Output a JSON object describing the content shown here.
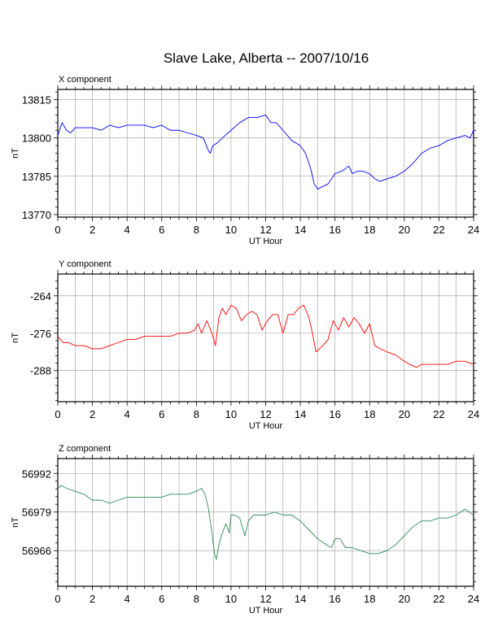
{
  "title": "Slave Lake, Alberta -- 2007/10/16",
  "chart_data": [
    {
      "type": "line",
      "panel_label": "X component",
      "xlabel": "UT Hour",
      "ylabel": "nT",
      "xlim": [
        0,
        24
      ],
      "ylim": [
        13769,
        13819
      ],
      "x_ticks": [
        0,
        2,
        4,
        6,
        8,
        10,
        12,
        14,
        16,
        18,
        20,
        22,
        24
      ],
      "y_ticks": [
        13770,
        13785,
        13800,
        13815
      ],
      "grid": true,
      "color": "#0000ff",
      "x": [
        0,
        0.25,
        0.5,
        0.75,
        1,
        1.5,
        2,
        2.5,
        3,
        3.5,
        4,
        4.5,
        5,
        5.5,
        6,
        6.5,
        7,
        7.5,
        8,
        8.4,
        8.7,
        8.8,
        8.95,
        9.2,
        9.5,
        10,
        10.5,
        11,
        11.5,
        12,
        12.3,
        12.6,
        13,
        13.5,
        14,
        14.3,
        14.6,
        14.8,
        15,
        15.3,
        15.6,
        16,
        16.4,
        16.8,
        17,
        17.3,
        17.6,
        18,
        18.3,
        18.6,
        19,
        19.5,
        20,
        20.5,
        21,
        21.5,
        22,
        22.5,
        23,
        23.5,
        23.8,
        24
      ],
      "y": [
        13801,
        13806,
        13803,
        13802,
        13804,
        13804,
        13804,
        13803,
        13805,
        13804,
        13805,
        13805,
        13805,
        13804,
        13805,
        13803,
        13803,
        13802,
        13801,
        13800,
        13795,
        13794,
        13797,
        13798,
        13800,
        13803,
        13806,
        13808,
        13808,
        13809,
        13806,
        13806,
        13803,
        13799,
        13797,
        13794,
        13788,
        13782,
        13780,
        13781,
        13782,
        13786,
        13787,
        13789,
        13786,
        13787,
        13787,
        13786,
        13784,
        13783,
        13784,
        13785,
        13787,
        13790,
        13794,
        13796,
        13797,
        13799,
        13800,
        13801,
        13800,
        13803
      ]
    },
    {
      "type": "line",
      "panel_label": "Y component",
      "xlabel": "UT Hour",
      "ylabel": "nT",
      "xlim": [
        0,
        24
      ],
      "ylim": [
        -298,
        -257
      ],
      "y_ticks": [
        -288,
        -276,
        -264
      ],
      "x_ticks": [
        0,
        2,
        4,
        6,
        8,
        10,
        12,
        14,
        16,
        18,
        20,
        22,
        24
      ],
      "grid": true,
      "color": "#ff0000",
      "x": [
        0,
        0.3,
        0.6,
        1,
        1.5,
        2,
        2.5,
        3,
        3.5,
        4,
        4.5,
        5,
        5.5,
        6,
        6.5,
        7,
        7.5,
        7.9,
        8.1,
        8.3,
        8.6,
        8.9,
        9.1,
        9.3,
        9.5,
        9.7,
        10,
        10.3,
        10.6,
        10.9,
        11.2,
        11.5,
        11.8,
        12.1,
        12.4,
        12.7,
        13,
        13.3,
        13.6,
        13.9,
        14.2,
        14.5,
        14.7,
        14.9,
        15.1,
        15.3,
        15.6,
        15.9,
        16.2,
        16.5,
        16.8,
        17.1,
        17.4,
        17.7,
        18,
        18.3,
        18.6,
        19,
        19.5,
        20,
        20.3,
        20.7,
        21,
        21.5,
        22,
        22.5,
        23,
        23.5,
        24
      ],
      "y": [
        -277,
        -279,
        -279,
        -280,
        -280,
        -281,
        -281,
        -280,
        -279,
        -278,
        -278,
        -277,
        -277,
        -277,
        -277,
        -276,
        -276,
        -275,
        -273,
        -276,
        -272,
        -276,
        -280,
        -271,
        -268,
        -270,
        -267,
        -268,
        -272,
        -270,
        -269,
        -270,
        -275,
        -272,
        -270,
        -270,
        -276,
        -270,
        -270,
        -268,
        -267,
        -271,
        -276,
        -282,
        -281,
        -280,
        -278,
        -272,
        -275,
        -271,
        -274,
        -271,
        -273,
        -276,
        -273,
        -280,
        -281,
        -282,
        -283,
        -285,
        -286,
        -287,
        -286,
        -286,
        -286,
        -286,
        -285,
        -285,
        -286
      ]
    },
    {
      "type": "line",
      "panel_label": "Z component",
      "xlabel": "UT Hour",
      "ylabel": "nT",
      "xlim": [
        0,
        24
      ],
      "ylim": [
        56954,
        56997
      ],
      "y_ticks": [
        56966,
        56979,
        56992
      ],
      "x_ticks": [
        0,
        2,
        4,
        6,
        8,
        10,
        12,
        14,
        16,
        18,
        20,
        22,
        24
      ],
      "grid": true,
      "color": "#2e8b57",
      "x": [
        0,
        0.2,
        0.5,
        1,
        1.5,
        2,
        2.5,
        3,
        3.5,
        4,
        4.5,
        5,
        5.5,
        6,
        6.5,
        7,
        7.5,
        8,
        8.3,
        8.5,
        8.7,
        8.9,
        9.05,
        9.15,
        9.3,
        9.5,
        9.7,
        9.9,
        10,
        10.2,
        10.5,
        10.8,
        11,
        11.3,
        11.6,
        12,
        12.5,
        13,
        13.5,
        14,
        14.5,
        15,
        15.5,
        15.8,
        16,
        16.3,
        16.6,
        17,
        17.5,
        18,
        18.5,
        19,
        19.5,
        20,
        20.5,
        21,
        21.5,
        22,
        22.5,
        23,
        23.5,
        24
      ],
      "y": [
        56987,
        56988,
        56987,
        56986,
        56985,
        56983,
        56983,
        56982,
        56983,
        56984,
        56984,
        56984,
        56984,
        56984,
        56985,
        56985,
        56985,
        56986,
        56987,
        56985,
        56980,
        56972,
        56965,
        56963,
        56968,
        56972,
        56975,
        56972,
        56978,
        56978,
        56977,
        56971,
        56976,
        56978,
        56978,
        56978,
        56979,
        56978,
        56978,
        56976,
        56973,
        56970,
        56968,
        56967,
        56970,
        56970,
        56967,
        56967,
        56966,
        56965,
        56965,
        56966,
        56968,
        56971,
        56974,
        56976,
        56976,
        56977,
        56977,
        56978,
        56980,
        56978
      ]
    }
  ]
}
